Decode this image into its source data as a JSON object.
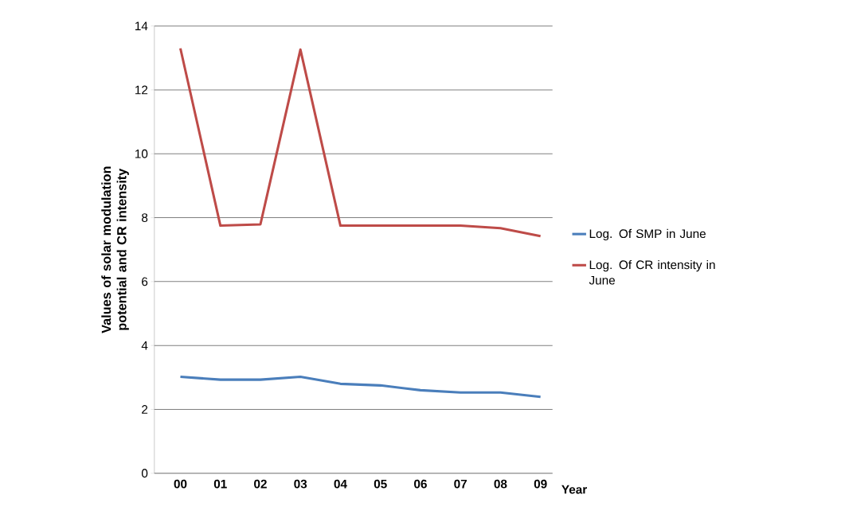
{
  "chart_data": {
    "type": "line",
    "xlabel": "Year",
    "ylabel": "Values of solar modulation potential and CR intensity",
    "categories": [
      "00",
      "01",
      "02",
      "03",
      "04",
      "05",
      "06",
      "07",
      "08",
      "09"
    ],
    "series": [
      {
        "name": "Log. Of SMP in June",
        "color": "#4a7ebb",
        "values": [
          3.02,
          2.93,
          2.93,
          3.02,
          2.8,
          2.75,
          2.6,
          2.53,
          2.53,
          2.39
        ]
      },
      {
        "name": "Log. Of CR intensity in June",
        "color": "#be4b48",
        "values": [
          13.3,
          7.75,
          7.79,
          13.26,
          7.75,
          7.75,
          7.75,
          7.75,
          7.67,
          7.42
        ]
      }
    ],
    "ylim": [
      0,
      14
    ],
    "yticks": [
      0,
      2,
      4,
      6,
      8,
      10,
      12,
      14
    ],
    "grid": "y",
    "legend": "right",
    "marker": "none",
    "line_style": "solid"
  }
}
